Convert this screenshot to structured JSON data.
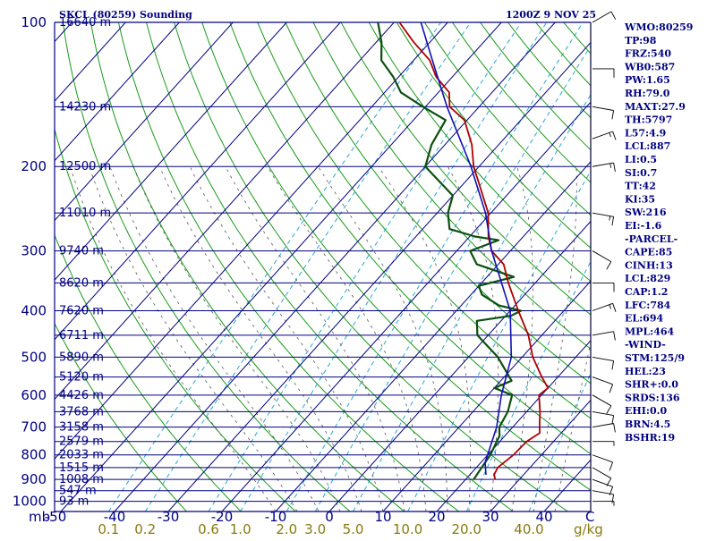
{
  "chart_data": {
    "type": "skew-t sounding",
    "title": "SKCL (80259) Sounding",
    "valid_time": "1200Z  9 NOV 25",
    "pressure_axis_label": "mb",
    "pressure_levels": [
      100,
      200,
      300,
      400,
      500,
      600,
      700,
      800,
      900,
      1000
    ],
    "temperature_axis_label": "C",
    "temperature_ticks": [
      -50,
      -40,
      -30,
      -20,
      -10,
      0,
      10,
      20,
      30,
      40
    ],
    "mixing_ratio_axis_label": "g/kg",
    "mixing_ratio_ticks": [
      "0.1",
      "0.2",
      "0.6",
      "1.0",
      "2.0",
      "3.0",
      "5.0",
      "10.0",
      "20.0",
      "40.0"
    ],
    "height_labels": [
      {
        "p": 100,
        "label": "16640 m"
      },
      {
        "p": 150,
        "label": "14230 m"
      },
      {
        "p": 200,
        "label": "12500 m"
      },
      {
        "p": 250,
        "label": "11010 m"
      },
      {
        "p": 300,
        "label": "9740 m"
      },
      {
        "p": 350,
        "label": "8620 m"
      },
      {
        "p": 400,
        "label": "7620 m"
      },
      {
        "p": 450,
        "label": "6711 m"
      },
      {
        "p": 500,
        "label": "5890 m"
      },
      {
        "p": 550,
        "label": "5120 m"
      },
      {
        "p": 600,
        "label": "4426 m"
      },
      {
        "p": 650,
        "label": "3768 m"
      },
      {
        "p": 700,
        "label": "3158 m"
      },
      {
        "p": 750,
        "label": "2579 m"
      },
      {
        "p": 800,
        "label": "2033 m"
      },
      {
        "p": 850,
        "label": "1515 m"
      },
      {
        "p": 900,
        "label": "1008 m"
      },
      {
        "p": 950,
        "label": "547 m"
      },
      {
        "p": 1000,
        "label": "93 m"
      }
    ],
    "temperature_profile_C": [
      {
        "p": 900,
        "t": 25.5
      },
      {
        "p": 880,
        "t": 24.5
      },
      {
        "p": 850,
        "t": 24.0
      },
      {
        "p": 800,
        "t": 24.8
      },
      {
        "p": 750,
        "t": 25.0
      },
      {
        "p": 720,
        "t": 26.0
      },
      {
        "p": 700,
        "t": 25.0
      },
      {
        "p": 680,
        "t": 24.0
      },
      {
        "p": 650,
        "t": 22.5
      },
      {
        "p": 600,
        "t": 19.5
      },
      {
        "p": 580,
        "t": 20.0
      },
      {
        "p": 550,
        "t": 17.0
      },
      {
        "p": 500,
        "t": 12.0
      },
      {
        "p": 450,
        "t": 7.5
      },
      {
        "p": 400,
        "t": 1.5
      },
      {
        "p": 350,
        "t": -5.0
      },
      {
        "p": 320,
        "t": -9.0
      },
      {
        "p": 300,
        "t": -13.5
      },
      {
        "p": 280,
        "t": -16.5
      },
      {
        "p": 250,
        "t": -20.5
      },
      {
        "p": 220,
        "t": -26.5
      },
      {
        "p": 200,
        "t": -31.0
      },
      {
        "p": 180,
        "t": -35.0
      },
      {
        "p": 160,
        "t": -40.5
      },
      {
        "p": 150,
        "t": -45.5
      },
      {
        "p": 140,
        "t": -48.0
      },
      {
        "p": 130,
        "t": -53.0
      },
      {
        "p": 120,
        "t": -57.0
      },
      {
        "p": 110,
        "t": -63.0
      },
      {
        "p": 100,
        "t": -69.0
      }
    ],
    "dewpoint_profile_C": [
      {
        "p": 900,
        "t": 21.5
      },
      {
        "p": 850,
        "t": 21.0
      },
      {
        "p": 800,
        "t": 20.5
      },
      {
        "p": 730,
        "t": 19.0
      },
      {
        "p": 700,
        "t": 17.5
      },
      {
        "p": 650,
        "t": 16.5
      },
      {
        "p": 600,
        "t": 14.5
      },
      {
        "p": 580,
        "t": 10.0
      },
      {
        "p": 560,
        "t": 12.0
      },
      {
        "p": 500,
        "t": 5.5
      },
      {
        "p": 450,
        "t": -2.0
      },
      {
        "p": 420,
        "t": -4.5
      },
      {
        "p": 410,
        "t": 1.0
      },
      {
        "p": 400,
        "t": 2.0
      },
      {
        "p": 390,
        "t": -3.0
      },
      {
        "p": 370,
        "t": -8.0
      },
      {
        "p": 355,
        "t": -10.0
      },
      {
        "p": 340,
        "t": -5.0
      },
      {
        "p": 320,
        "t": -14.0
      },
      {
        "p": 300,
        "t": -17.5
      },
      {
        "p": 285,
        "t": -14.0
      },
      {
        "p": 280,
        "t": -19.0
      },
      {
        "p": 270,
        "t": -25.0
      },
      {
        "p": 250,
        "t": -28.0
      },
      {
        "p": 230,
        "t": -30.0
      },
      {
        "p": 200,
        "t": -40.0
      },
      {
        "p": 180,
        "t": -42.5
      },
      {
        "p": 160,
        "t": -44.0
      },
      {
        "p": 150,
        "t": -50.5
      },
      {
        "p": 140,
        "t": -57.0
      },
      {
        "p": 130,
        "t": -61.0
      },
      {
        "p": 120,
        "t": -66.0
      },
      {
        "p": 110,
        "t": -69.0
      },
      {
        "p": 100,
        "t": -73.0
      }
    ],
    "parcel_profile_C": [
      {
        "p": 880,
        "t": 23.0
      },
      {
        "p": 830,
        "t": 20.8
      },
      {
        "p": 700,
        "t": 17.0
      },
      {
        "p": 600,
        "t": 12.5
      },
      {
        "p": 500,
        "t": 8.0
      },
      {
        "p": 400,
        "t": 0.0
      },
      {
        "p": 300,
        "t": -13.5
      },
      {
        "p": 250,
        "t": -21.0
      },
      {
        "p": 200,
        "t": -31.5
      },
      {
        "p": 150,
        "t": -46.0
      },
      {
        "p": 120,
        "t": -56.5
      },
      {
        "p": 100,
        "t": -65.0
      }
    ],
    "wind_barbs": [
      {
        "p": 1000,
        "dir": 90,
        "kt": 5
      },
      {
        "p": 950,
        "dir": 100,
        "kt": 10
      },
      {
        "p": 900,
        "dir": 110,
        "kt": 10
      },
      {
        "p": 850,
        "dir": 120,
        "kt": 10
      },
      {
        "p": 800,
        "dir": 110,
        "kt": 10
      },
      {
        "p": 750,
        "dir": 90,
        "kt": 5
      },
      {
        "p": 700,
        "dir": 80,
        "kt": 10
      },
      {
        "p": 650,
        "dir": 100,
        "kt": 10
      },
      {
        "p": 600,
        "dir": 120,
        "kt": 10
      },
      {
        "p": 550,
        "dir": 110,
        "kt": 10
      },
      {
        "p": 500,
        "dir": 100,
        "kt": 10
      },
      {
        "p": 450,
        "dir": 80,
        "kt": 10
      },
      {
        "p": 400,
        "dir": 70,
        "kt": 15
      },
      {
        "p": 350,
        "dir": 90,
        "kt": 10
      },
      {
        "p": 300,
        "dir": 120,
        "kt": 10
      },
      {
        "p": 250,
        "dir": 100,
        "kt": 15
      },
      {
        "p": 200,
        "dir": 80,
        "kt": 15
      },
      {
        "p": 175,
        "dir": 70,
        "kt": 15
      },
      {
        "p": 150,
        "dir": 100,
        "kt": 10
      },
      {
        "p": 125,
        "dir": 90,
        "kt": 10
      },
      {
        "p": 100,
        "dir": 60,
        "kt": 10
      }
    ],
    "indices": [
      "WMO:80259",
      "TP:98",
      "FRZ:540",
      "WB0:587",
      "PW:1.65",
      "RH:79.0",
      "MAXT:27.9",
      "TH:5797",
      "L57:4.9",
      "LCL:887",
      "LI:0.5",
      "SI:0.7",
      "TT:42",
      "KI:35",
      "SW:216",
      "EI:-1.6",
      "-PARCEL-",
      "CAPE:85",
      "CINH:13",
      "LCL:829",
      "CAP:1.2",
      "LFC:784",
      "EL:694",
      "MPL:464",
      "-WIND-",
      "STM:125/9",
      "HEL:23",
      "SHR+:0.0",
      "SRDS:136",
      "EHI:0.0",
      "BRN:4.5",
      "BSHR:19"
    ],
    "colors": {
      "grid": "#000080",
      "temperature": "#b00000",
      "dewpoint": "#0b5010",
      "parcel": "#1010b0",
      "dry_adiabat": "#1a9a1a",
      "moist_adiabat": "#555555",
      "mixing_ratio": "#2aa7d6",
      "text": "#000080",
      "mixing_label": "#8a7a10"
    }
  }
}
